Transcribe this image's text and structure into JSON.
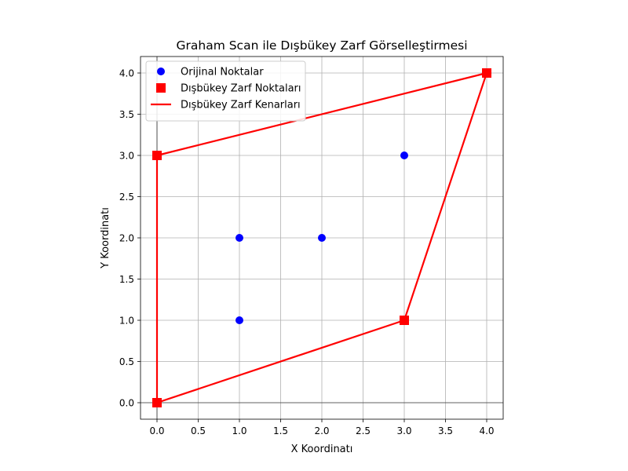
{
  "chart_data": {
    "type": "scatter",
    "title": "Graham Scan ile Dışbükey Zarf Görselleştirmesi",
    "xlabel": "X Koordinatı",
    "ylabel": "Y Koordinatı",
    "xlim": [
      -0.2,
      4.2
    ],
    "ylim": [
      -0.2,
      4.2
    ],
    "x_ticks": [
      "0.0",
      "0.5",
      "1.0",
      "1.5",
      "2.0",
      "2.5",
      "3.0",
      "3.5",
      "4.0"
    ],
    "y_ticks": [
      "0.0",
      "0.5",
      "1.0",
      "1.5",
      "2.0",
      "2.5",
      "3.0",
      "3.5",
      "4.0"
    ],
    "grid": true,
    "legend_position": "top-left",
    "series": [
      {
        "name": "Orijinal Noktalar",
        "kind": "scatter",
        "marker": "circle",
        "color": "#0000ff",
        "points": [
          [
            0,
            0
          ],
          [
            1,
            1
          ],
          [
            2,
            2
          ],
          [
            4,
            4
          ],
          [
            0,
            3
          ],
          [
            3,
            1
          ],
          [
            1,
            2
          ],
          [
            3,
            3
          ]
        ]
      },
      {
        "name": "Dışbükey Zarf Noktaları",
        "kind": "scatter",
        "marker": "square",
        "color": "#ff0000",
        "points": [
          [
            0,
            0
          ],
          [
            3,
            1
          ],
          [
            4,
            4
          ],
          [
            0,
            3
          ]
        ]
      },
      {
        "name": "Dışbükey Zarf Kenarları",
        "kind": "line",
        "color": "#ff0000",
        "points": [
          [
            0,
            0
          ],
          [
            3,
            1
          ],
          [
            4,
            4
          ],
          [
            0,
            3
          ],
          [
            0,
            0
          ]
        ]
      }
    ]
  }
}
